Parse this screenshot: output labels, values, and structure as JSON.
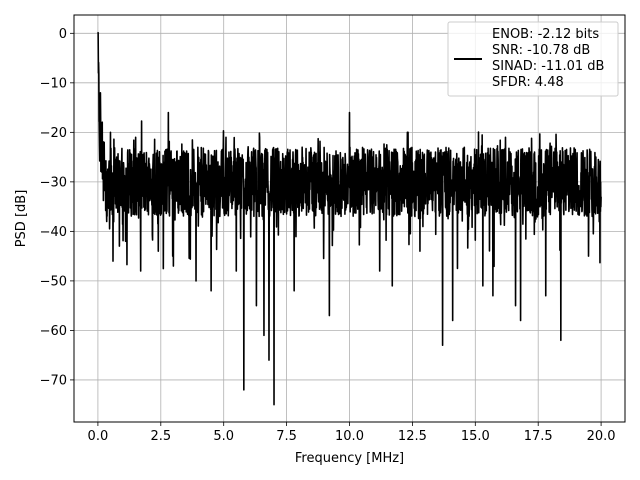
{
  "chart_data": {
    "type": "line",
    "title": "",
    "xlabel": "Frequency [MHz]",
    "ylabel": "PSD [dB]",
    "xlim": [
      -0.95,
      20.95
    ],
    "ylim": [
      -78.5,
      3.7
    ],
    "xticks": [
      0.0,
      2.5,
      5.0,
      7.5,
      10.0,
      12.5,
      15.0,
      17.5,
      20.0
    ],
    "xtick_labels": [
      "0.0",
      "2.5",
      "5.0",
      "7.5",
      "10.0",
      "12.5",
      "15.0",
      "17.5",
      "20.0"
    ],
    "yticks": [
      0,
      -10,
      -20,
      -30,
      -40,
      -50,
      -60,
      -70
    ],
    "ytick_labels": [
      "0",
      "−10",
      "−20",
      "−30",
      "−40",
      "−50",
      "−60",
      "−70"
    ],
    "grid": true,
    "legend_position": "top-right",
    "series": [
      {
        "color": "#000000",
        "approx_points": [
          [
            0.0,
            0.0
          ],
          [
            0.02,
            -8
          ],
          [
            0.05,
            -17
          ],
          [
            0.1,
            -12
          ],
          [
            0.15,
            -28
          ],
          [
            0.25,
            -22
          ],
          [
            0.35,
            -38
          ],
          [
            0.5,
            -20
          ],
          [
            0.6,
            -46
          ],
          [
            0.9,
            -33
          ],
          [
            1.1,
            -42
          ],
          [
            1.5,
            -21
          ],
          [
            1.7,
            -48
          ],
          [
            2.0,
            -27
          ],
          [
            2.4,
            -44
          ],
          [
            2.8,
            -16
          ],
          [
            3.0,
            -47
          ],
          [
            3.5,
            -29
          ],
          [
            3.9,
            -50
          ],
          [
            4.4,
            -24
          ],
          [
            4.5,
            -52
          ],
          [
            5.0,
            -31
          ],
          [
            5.5,
            -48
          ],
          [
            5.8,
            -72
          ],
          [
            6.1,
            -27
          ],
          [
            6.3,
            -55
          ],
          [
            6.6,
            -61
          ],
          [
            6.8,
            -66
          ],
          [
            7.0,
            -75
          ],
          [
            7.2,
            -30
          ],
          [
            7.8,
            -52
          ],
          [
            8.4,
            -24
          ],
          [
            9.2,
            -57
          ],
          [
            10.0,
            -52
          ],
          [
            10.0,
            -16
          ],
          [
            10.5,
            -30
          ],
          [
            11.2,
            -48
          ],
          [
            11.7,
            -51
          ],
          [
            12.3,
            -20
          ],
          [
            12.8,
            -44
          ],
          [
            13.4,
            -25
          ],
          [
            13.7,
            -63
          ],
          [
            14.1,
            -58
          ],
          [
            14.6,
            -33
          ],
          [
            15.3,
            -51
          ],
          [
            15.7,
            -53
          ],
          [
            16.2,
            -21
          ],
          [
            16.6,
            -55
          ],
          [
            16.8,
            -58
          ],
          [
            17.2,
            -31
          ],
          [
            17.8,
            -53
          ],
          [
            18.4,
            -62
          ],
          [
            19.0,
            -26
          ],
          [
            19.5,
            -45
          ],
          [
            20.0,
            -33
          ]
        ]
      }
    ]
  },
  "legend": {
    "lines": [
      "ENOB: -2.12 bits",
      "SNR: -10.78 dB",
      "SINAD: -11.01 dB",
      "SFDR: 4.48"
    ]
  }
}
